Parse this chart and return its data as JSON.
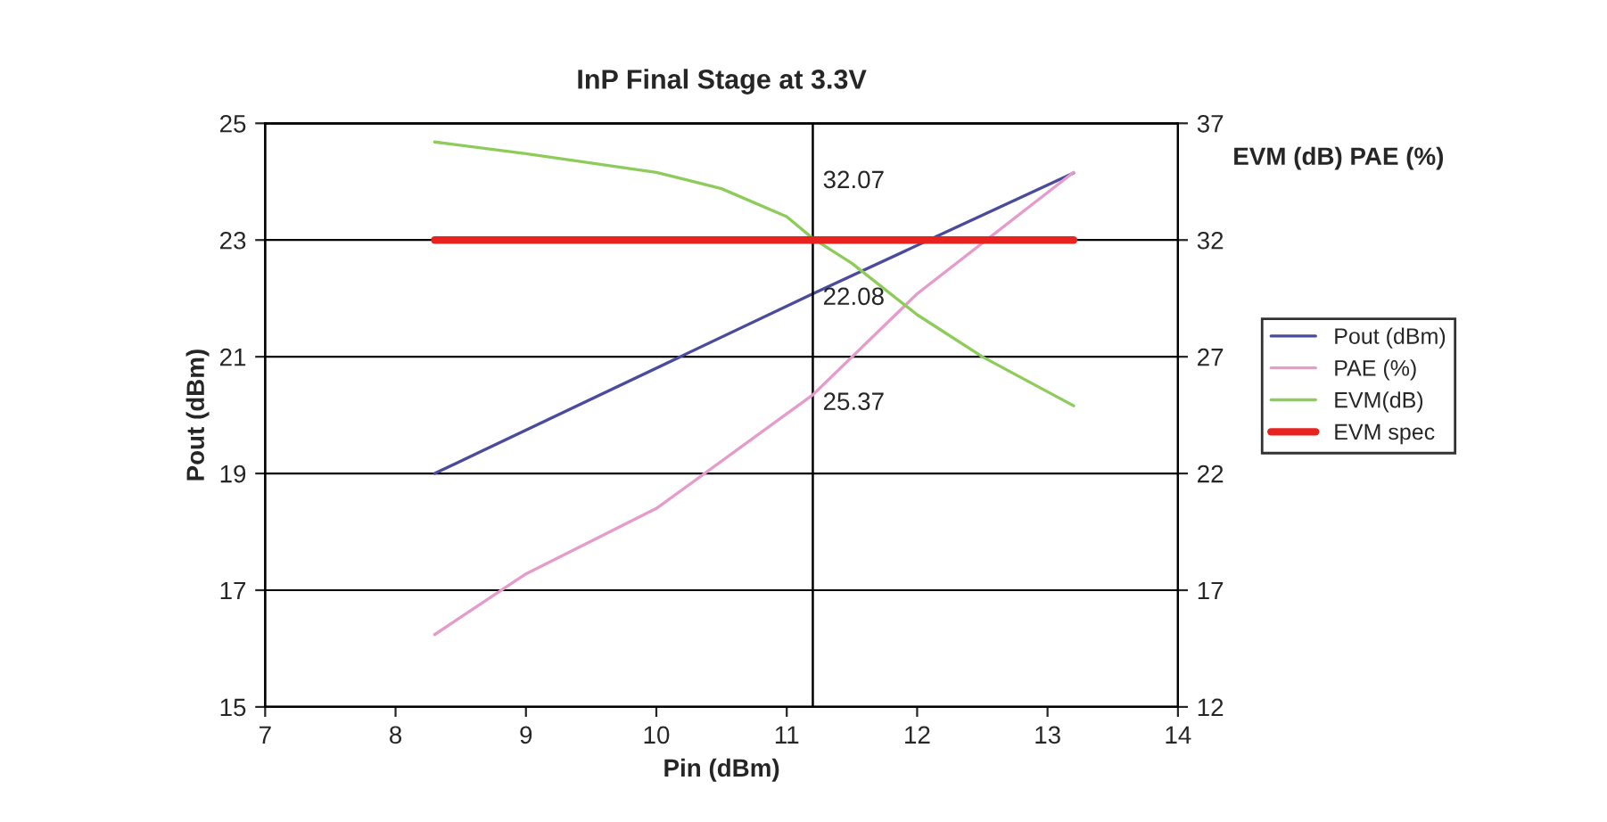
{
  "chart_data": {
    "type": "line",
    "title": "InP Final Stage at 3.3V",
    "xlabel": "Pin (dBm)",
    "ylabel": "Pout (dBm)",
    "y2label": "EVM (dB) PAE (%)",
    "xlim": [
      7,
      14
    ],
    "xticks": [
      7,
      8,
      9,
      10,
      11,
      12,
      13,
      14
    ],
    "ylim": [
      15,
      25
    ],
    "yticks": [
      15,
      17,
      19,
      21,
      23,
      25
    ],
    "y2lim": [
      12,
      37
    ],
    "y2ticks": [
      12,
      17,
      22,
      27,
      32,
      37
    ],
    "grid": "y",
    "legend": "right",
    "marker": "none",
    "line_style": "solid",
    "series": [
      {
        "name": "Pout (dBm)",
        "color": "#4b4b9e",
        "x": [
          8.3,
          11.2,
          13.2
        ],
        "values": [
          19.0,
          22.08,
          24.15
        ]
      },
      {
        "name": "PAE (%)",
        "color": "#e59ccb",
        "axis": "y2",
        "x": [
          8.3,
          9,
          10,
          11.2,
          12,
          13.2
        ],
        "values": [
          15.1,
          17.7,
          20.5,
          25.37,
          29.7,
          34.9
        ]
      },
      {
        "name": "EVM(dB)",
        "color": "#8dcc5a",
        "axis": "y2",
        "x": [
          8.3,
          9,
          10,
          10.5,
          11,
          11.2,
          11.5,
          12,
          12.5,
          13.2
        ],
        "values": [
          36.2,
          35.7,
          34.9,
          34.2,
          33.0,
          32.07,
          31.0,
          28.8,
          27.0,
          24.9
        ]
      },
      {
        "name": "EVM spec",
        "color": "#e8231f",
        "axis": "y2",
        "x": [
          8.3,
          13.2
        ],
        "values": [
          32,
          32
        ]
      }
    ],
    "ref_lines": [
      {
        "axis": "x",
        "value": 11.2,
        "color": "#000000"
      }
    ],
    "annotations": [
      "32.07",
      "22.08",
      "25.37"
    ]
  }
}
